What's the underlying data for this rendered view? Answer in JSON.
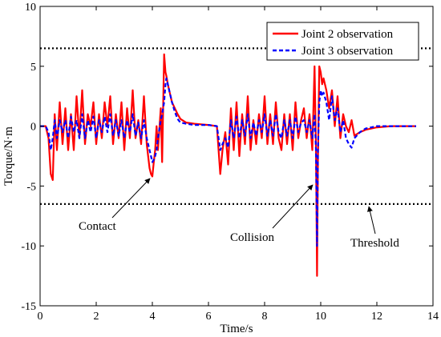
{
  "chart_data": {
    "type": "line",
    "title": "",
    "xlabel": "Time/s",
    "ylabel": "Torque/N·m",
    "xlim": [
      0,
      14
    ],
    "ylim": [
      -15,
      10
    ],
    "xticks": [
      0,
      2,
      4,
      6,
      8,
      10,
      12,
      14
    ],
    "yticks": [
      -15,
      -10,
      -5,
      0,
      5,
      10
    ],
    "grid": false,
    "legend_position": "top-right",
    "colors": {
      "joint2": "#ff0000",
      "joint3": "#0000ff",
      "threshold": "#000000"
    },
    "series": [
      {
        "name": "Joint 2 observation",
        "style": "solid",
        "x": [
          0,
          0.2,
          0.3,
          0.38,
          0.45,
          0.52,
          0.6,
          0.7,
          0.8,
          0.9,
          1.0,
          1.1,
          1.2,
          1.3,
          1.4,
          1.5,
          1.6,
          1.7,
          1.8,
          1.9,
          2.0,
          2.1,
          2.2,
          2.3,
          2.4,
          2.5,
          2.6,
          2.7,
          2.8,
          2.9,
          3.0,
          3.1,
          3.2,
          3.3,
          3.4,
          3.5,
          3.6,
          3.7,
          3.8,
          3.9,
          3.95,
          4.0,
          4.05,
          4.1,
          4.15,
          4.2,
          4.3,
          4.35,
          4.42,
          4.47,
          4.5,
          4.55,
          4.6,
          4.7,
          4.8,
          4.9,
          5.0,
          5.2,
          5.5,
          6.0,
          6.3,
          6.42,
          6.5,
          6.6,
          6.7,
          6.8,
          6.9,
          7.0,
          7.1,
          7.2,
          7.3,
          7.4,
          7.5,
          7.6,
          7.7,
          7.8,
          7.9,
          8.0,
          8.1,
          8.2,
          8.3,
          8.4,
          8.5,
          8.6,
          8.7,
          8.8,
          8.9,
          9.0,
          9.1,
          9.2,
          9.3,
          9.4,
          9.5,
          9.6,
          9.7,
          9.78,
          9.83,
          9.87,
          9.9,
          9.95,
          10.0,
          10.05,
          10.1,
          10.2,
          10.3,
          10.4,
          10.5,
          10.6,
          10.7,
          10.8,
          10.9,
          11.0,
          11.1,
          11.2,
          11.4,
          11.6,
          12.0,
          12.5,
          13.0,
          13.4
        ],
        "values": [
          0,
          0,
          -1,
          -4,
          -4.5,
          1,
          -2,
          2,
          -1.5,
          1.5,
          -2,
          1,
          -2,
          2.5,
          -1,
          3,
          -1.5,
          1,
          0,
          2,
          -1.5,
          1,
          -1,
          2,
          0,
          2.5,
          -1.5,
          1,
          -1,
          2,
          -2,
          1.5,
          -1,
          3,
          -1,
          0.5,
          -1.5,
          2.5,
          -1.5,
          -3.5,
          -4,
          -4.2,
          -3,
          -2,
          0,
          -2,
          1.5,
          -3,
          6,
          4.5,
          4.2,
          3.5,
          3,
          2,
          1.5,
          1,
          0.6,
          0.3,
          0.2,
          0.1,
          0,
          -4,
          -2,
          -0.5,
          -3.2,
          1.5,
          -2,
          2,
          -2.5,
          1,
          -1.5,
          2.5,
          -2,
          0.5,
          -1.5,
          1,
          -1,
          2.5,
          -1.5,
          1,
          -1.5,
          2,
          -1,
          -2,
          1,
          -1.5,
          1,
          -2,
          2,
          -1,
          0.5,
          1.5,
          -1,
          1,
          -2,
          5,
          -2,
          -12.5,
          -3,
          5,
          4.5,
          3.5,
          4,
          3,
          1.5,
          3,
          0,
          2.5,
          -1,
          1,
          0,
          -0.5,
          0.5,
          -0.8,
          -0.5,
          -0.3,
          -0.1,
          0,
          0,
          0
        ]
      },
      {
        "name": "Joint 3 observation",
        "style": "dashed",
        "x": [
          0,
          0.2,
          0.3,
          0.38,
          0.45,
          0.52,
          0.6,
          0.7,
          0.8,
          0.9,
          1.0,
          1.1,
          1.2,
          1.3,
          1.4,
          1.5,
          1.6,
          1.7,
          1.8,
          1.9,
          2.0,
          2.1,
          2.2,
          2.3,
          2.4,
          2.5,
          2.6,
          2.7,
          2.8,
          2.9,
          3.0,
          3.1,
          3.2,
          3.3,
          3.4,
          3.5,
          3.6,
          3.7,
          3.8,
          3.9,
          3.95,
          4.0,
          4.05,
          4.1,
          4.15,
          4.2,
          4.3,
          4.35,
          4.42,
          4.47,
          4.5,
          4.55,
          4.6,
          4.7,
          4.8,
          4.9,
          5.0,
          5.2,
          5.5,
          6.0,
          6.3,
          6.42,
          6.5,
          6.6,
          6.7,
          6.8,
          6.9,
          7.0,
          7.1,
          7.2,
          7.3,
          7.4,
          7.5,
          7.6,
          7.7,
          7.8,
          7.9,
          8.0,
          8.1,
          8.2,
          8.3,
          8.4,
          8.5,
          8.6,
          8.7,
          8.8,
          8.9,
          9.0,
          9.1,
          9.2,
          9.3,
          9.4,
          9.5,
          9.6,
          9.7,
          9.78,
          9.83,
          9.87,
          9.9,
          9.95,
          10.0,
          10.05,
          10.1,
          10.2,
          10.3,
          10.4,
          10.5,
          10.6,
          10.7,
          10.8,
          10.9,
          11.0,
          11.1,
          11.2,
          11.4,
          11.6,
          12.0,
          12.5,
          13.0,
          13.4
        ],
        "values": [
          0,
          0,
          -0.5,
          -2,
          -1,
          0.5,
          -1,
          0.5,
          -0.5,
          0.5,
          -1,
          0.8,
          -0.5,
          0.5,
          -1,
          1,
          -1,
          0.5,
          -0.5,
          0.8,
          -1,
          0.5,
          -0.5,
          0.8,
          -0.5,
          1,
          -0.8,
          0.5,
          -0.8,
          0.5,
          -1,
          0.5,
          -0.5,
          1,
          -0.8,
          0.3,
          -1,
          0.5,
          -1,
          -2,
          -2.5,
          -3,
          -2.8,
          -2.5,
          -2,
          -1,
          0.5,
          1,
          2,
          3.5,
          4,
          3.5,
          3,
          2,
          1.2,
          0.6,
          0.3,
          0.2,
          0.1,
          0.1,
          0,
          -2,
          -1.5,
          -1,
          -1.8,
          0.5,
          -1,
          0.8,
          -1,
          0.5,
          -0.8,
          1,
          -1,
          0.3,
          -0.8,
          0.5,
          -0.5,
          1,
          -0.8,
          0.5,
          -0.8,
          1,
          -0.5,
          -1,
          0.5,
          -0.8,
          0.5,
          -1,
          0.8,
          -0.5,
          0.3,
          0.5,
          -0.5,
          0.5,
          -1,
          1,
          -2,
          -10,
          -2,
          2,
          3,
          2.5,
          2.8,
          2,
          0.5,
          2.5,
          0.5,
          1.5,
          -0.5,
          0.5,
          -1,
          -1.5,
          -1.8,
          -1,
          -0.5,
          -0.2,
          0,
          0,
          0,
          0
        ]
      }
    ],
    "threshold_lines": [
      6.5,
      -6.5
    ],
    "annotations": [
      {
        "text": "Contact",
        "point_x": 3.95,
        "point_y": -4.1
      },
      {
        "text": "Collision",
        "point_x": 9.82,
        "point_y": -4.5
      },
      {
        "text": "Threshold",
        "point_x": 11.5,
        "point_y": -6.6
      }
    ]
  }
}
